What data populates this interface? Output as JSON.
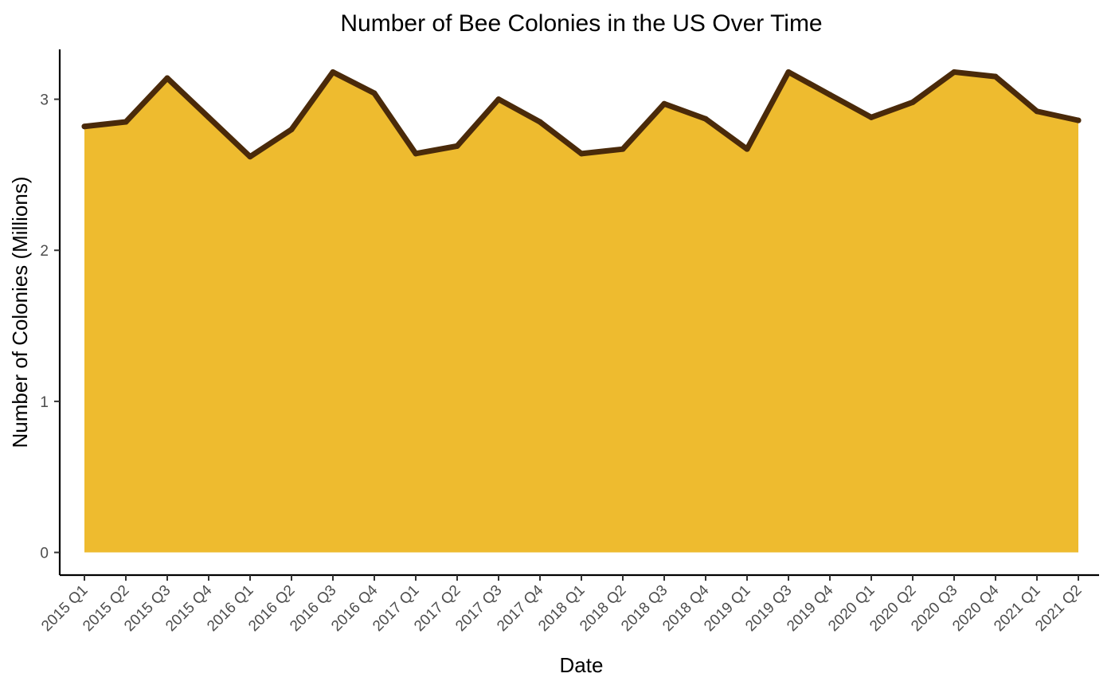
{
  "chart_data": {
    "type": "area",
    "title": "Number of Bee Colonies in the US Over Time",
    "xlabel": "Date",
    "ylabel": "Number of Colonies (Millions)",
    "categories": [
      "2015 Q1",
      "2015 Q2",
      "2015 Q3",
      "2015 Q4",
      "2016 Q1",
      "2016 Q2",
      "2016 Q3",
      "2016 Q4",
      "2017 Q1",
      "2017 Q2",
      "2017 Q3",
      "2017 Q4",
      "2018 Q1",
      "2018 Q2",
      "2018 Q3",
      "2018 Q4",
      "2019 Q1",
      "2019 Q3",
      "2019 Q4",
      "2020 Q1",
      "2020 Q2",
      "2020 Q3",
      "2020 Q4",
      "2021 Q1",
      "2021 Q2"
    ],
    "values": [
      2.82,
      2.85,
      3.14,
      2.88,
      2.62,
      2.8,
      3.18,
      3.04,
      2.64,
      2.69,
      3.0,
      2.85,
      2.64,
      2.67,
      2.97,
      2.87,
      2.67,
      3.18,
      3.03,
      2.88,
      2.98,
      3.18,
      3.15,
      2.92,
      2.86
    ],
    "ylim": [
      -0.15,
      3.33
    ],
    "yticks": [
      0,
      1,
      2,
      3
    ],
    "grid": false,
    "legend": "none",
    "fill_color": "#EEBB2F",
    "line_color": "#4A2A0A"
  }
}
